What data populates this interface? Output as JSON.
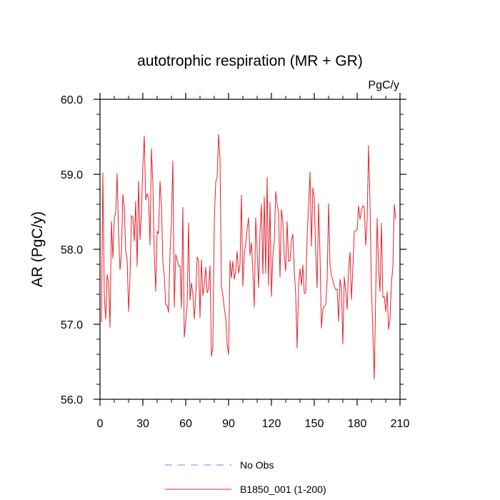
{
  "chart_data": {
    "type": "line",
    "title": "autotrophic respiration (MR + GR)",
    "units_label": "PgC/y",
    "xlabel": "",
    "ylabel": "AR  (PgC/y)",
    "xlim": [
      0,
      210
    ],
    "ylim": [
      56.0,
      60.0
    ],
    "x_major_ticks": [
      0,
      30,
      60,
      90,
      120,
      150,
      180,
      210
    ],
    "x_tick_labels": [
      "0",
      "30",
      "60",
      "90",
      "120",
      "150",
      "180",
      "210"
    ],
    "x_minor_step": 10,
    "y_major_ticks": [
      56.0,
      57.0,
      58.0,
      59.0,
      60.0
    ],
    "y_tick_labels": [
      "56.0",
      "57.0",
      "58.0",
      "59.0",
      "60.0"
    ],
    "y_minor_step": 0.2,
    "grid": false,
    "legend_position": "bottom-center",
    "series": [
      {
        "name": "No Obs",
        "color": "#8080ff",
        "dash": "dashed",
        "values": []
      },
      {
        "name": "B1850_001 (1-200)",
        "color": "#e8202a",
        "dash": "solid",
        "x_start": 1,
        "values": [
          57.03,
          59.02,
          57.38,
          57.07,
          57.66,
          57.56,
          56.96,
          58.37,
          57.88,
          58.42,
          58.49,
          59.01,
          58.2,
          57.73,
          57.95,
          58.73,
          58.55,
          57.98,
          57.86,
          57.17,
          57.63,
          58.45,
          58.42,
          58.11,
          58.64,
          57.77,
          58.91,
          58.13,
          58.48,
          59.12,
          59.51,
          58.66,
          58.74,
          58.69,
          58.06,
          59.34,
          58.87,
          57.94,
          57.44,
          58.24,
          58.21,
          58.91,
          58.6,
          57.83,
          57.65,
          57.26,
          57.25,
          57.16,
          57.96,
          58.36,
          59.18,
          57.23,
          57.93,
          57.86,
          57.78,
          57.78,
          57.22,
          58.56,
          56.83,
          57.03,
          57.26,
          58.35,
          57.32,
          57.55,
          57.41,
          57.07,
          57.38,
          57.9,
          57.85,
          57.09,
          57.86,
          57.38,
          57.52,
          57.76,
          57.42,
          57.47,
          57.78,
          56.57,
          56.7,
          58.37,
          58.9,
          58.96,
          59.53,
          59.2,
          57.52,
          57.38,
          57.22,
          57.08,
          56.72,
          56.6,
          57.85,
          57.62,
          57.84,
          57.6,
          57.71,
          57.97,
          57.68,
          57.8,
          58.72,
          57.51,
          57.94,
          58.08,
          58.27,
          58.42,
          57.92,
          58.09,
          57.71,
          57.23,
          58.42,
          57.99,
          57.49,
          58.23,
          58.6,
          57.67,
          58.7,
          57.68,
          58.96,
          57.52,
          58.63,
          57.37,
          57.92,
          58.09,
          58.77,
          58.6,
          58.49,
          57.63,
          58.53,
          58.36,
          57.91,
          57.71,
          58.37,
          57.84,
          57.85,
          58.12,
          58.2,
          57.71,
          57.4,
          56.68,
          57.51,
          57.74,
          57.52,
          57.79,
          57.41,
          57.42,
          58.19,
          58.58,
          59.03,
          58.04,
          58.82,
          58.68,
          57.95,
          57.49,
          58.61,
          57.93,
          56.95,
          57.2,
          57.24,
          57.26,
          57.58,
          58.61,
          57.8,
          57.65,
          57.59,
          57.51,
          57.46,
          57.47,
          57.04,
          57.6,
          57.48,
          56.74,
          57.63,
          57.45,
          57.2,
          57.73,
          57.96,
          57.33,
          57.74,
          58.23,
          58.25,
          58.26,
          58.58,
          58.4,
          58.51,
          58.58,
          58.56,
          58.05,
          58.4,
          59.38,
          58.63,
          57.48,
          56.91,
          56.27,
          57.41,
          58.41,
          57.75,
          57.44,
          58.35,
          57.36,
          57.37,
          57.17,
          57.43,
          56.93,
          57.07,
          57.56,
          57.76,
          58.6,
          58.4
        ]
      }
    ]
  }
}
